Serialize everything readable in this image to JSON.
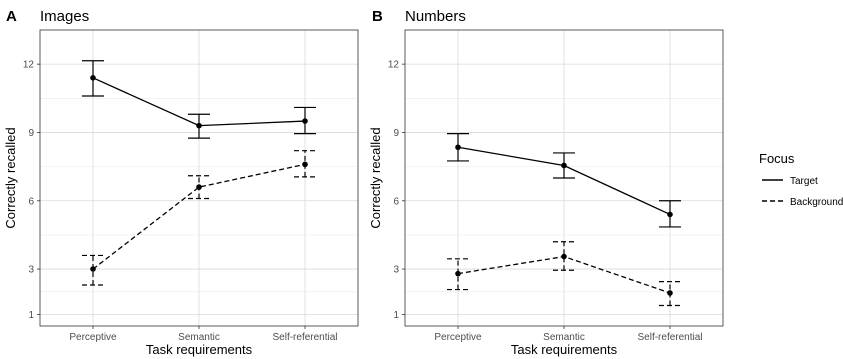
{
  "chart_data": [
    {
      "type": "line",
      "panel_letter": "A",
      "title": "Images",
      "xlabel": "Task requirements",
      "ylabel": "Correctly recalled",
      "categories": [
        "Perceptive",
        "Semantic",
        "Self-referential"
      ],
      "yticks": [
        1,
        3,
        6,
        9,
        12
      ],
      "ylim": [
        0.5,
        13.5
      ],
      "grid": true,
      "series": [
        {
          "name": "Target",
          "line_style": "solid",
          "values": [
            11.4,
            9.3,
            9.5
          ],
          "error_low": [
            10.6,
            8.75,
            8.95
          ],
          "error_high": [
            12.15,
            9.8,
            10.1
          ]
        },
        {
          "name": "Background",
          "line_style": "dashed",
          "values": [
            3.0,
            6.6,
            7.6
          ],
          "error_low": [
            2.3,
            6.1,
            7.05
          ],
          "error_high": [
            3.6,
            7.1,
            8.2
          ]
        }
      ]
    },
    {
      "type": "line",
      "panel_letter": "B",
      "title": "Numbers",
      "xlabel": "Task requirements",
      "ylabel": "Correctly recalled",
      "categories": [
        "Perceptive",
        "Semantic",
        "Self-referential"
      ],
      "yticks": [
        1,
        3,
        6,
        9,
        12
      ],
      "ylim": [
        0.5,
        13.5
      ],
      "grid": true,
      "series": [
        {
          "name": "Target",
          "line_style": "solid",
          "values": [
            8.35,
            7.55,
            5.4
          ],
          "error_low": [
            7.75,
            7.0,
            4.85
          ],
          "error_high": [
            8.95,
            8.1,
            6.0
          ]
        },
        {
          "name": "Background",
          "line_style": "dashed",
          "values": [
            2.8,
            3.55,
            1.95
          ],
          "error_low": [
            2.1,
            2.95,
            1.4
          ],
          "error_high": [
            3.45,
            4.2,
            2.45
          ]
        }
      ]
    }
  ],
  "legend": {
    "title": "Focus",
    "placement": "right",
    "entries": [
      {
        "label": "Target",
        "line_style": "solid"
      },
      {
        "label": "Background",
        "line_style": "dashed"
      }
    ]
  }
}
